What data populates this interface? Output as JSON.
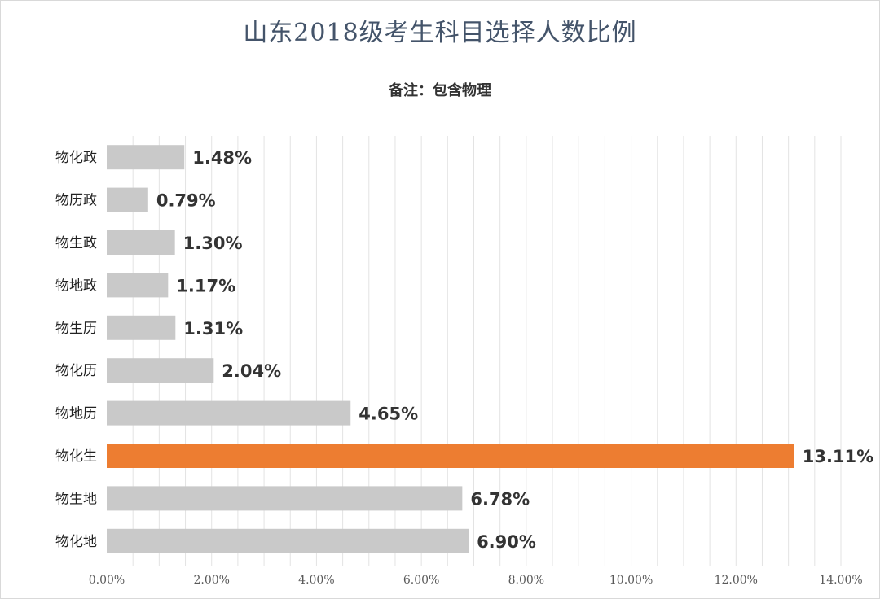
{
  "chart_data": {
    "type": "bar",
    "orientation": "horizontal",
    "title": "山东2018级考生科目选择人数比例",
    "subtitle": "备注：包含物理",
    "categories": [
      "物化政",
      "物历政",
      "物生政",
      "物地政",
      "物生历",
      "物化历",
      "物地历",
      "物化生",
      "物生地",
      "物化地"
    ],
    "values": [
      1.48,
      0.79,
      1.3,
      1.17,
      1.31,
      2.04,
      4.65,
      13.11,
      6.78,
      6.9
    ],
    "value_labels": [
      "1.48%",
      "0.79%",
      "1.30%",
      "1.17%",
      "1.31%",
      "2.04%",
      "4.65%",
      "13.11%",
      "6.78%",
      "6.90%"
    ],
    "xlim": [
      0,
      14
    ],
    "xticks": [
      "0.00%",
      "2.00%",
      "4.00%",
      "6.00%",
      "8.00%",
      "10.00%",
      "12.00%",
      "14.00%"
    ],
    "highlight_category": "物化生",
    "grid": "vertical",
    "colors": {
      "bar": "#c9c9c9",
      "highlight": "#ed7d31",
      "grid": "#e3e3e3",
      "title": "#44546a"
    }
  }
}
